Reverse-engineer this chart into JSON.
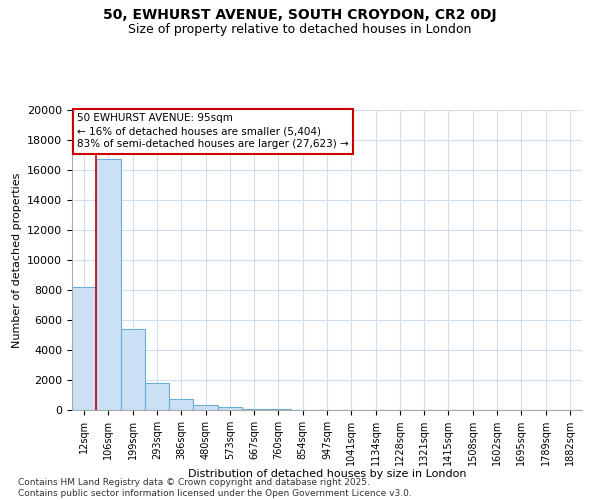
{
  "title1": "50, EWHURST AVENUE, SOUTH CROYDON, CR2 0DJ",
  "title2": "Size of property relative to detached houses in London",
  "xlabel": "Distribution of detached houses by size in London",
  "ylabel": "Number of detached properties",
  "bar_categories": [
    "12sqm",
    "106sqm",
    "199sqm",
    "293sqm",
    "386sqm",
    "480sqm",
    "573sqm",
    "667sqm",
    "760sqm",
    "854sqm",
    "947sqm",
    "1041sqm",
    "1134sqm",
    "1228sqm",
    "1321sqm",
    "1415sqm",
    "1508sqm",
    "1602sqm",
    "1695sqm",
    "1789sqm",
    "1882sqm"
  ],
  "bar_values": [
    8200,
    16700,
    5400,
    1800,
    750,
    320,
    200,
    100,
    50,
    0,
    0,
    0,
    0,
    0,
    0,
    0,
    0,
    0,
    0,
    0,
    0
  ],
  "bar_color": "#cce0f5",
  "bar_edge_color": "#6aaed6",
  "annotation_box_text": "50 EWHURST AVENUE: 95sqm\n← 16% of detached houses are smaller (5,404)\n83% of semi-detached houses are larger (27,623) →",
  "vline_x": 0.5,
  "vline_color": "#cc0000",
  "ylim": [
    0,
    20000
  ],
  "yticks": [
    0,
    2000,
    4000,
    6000,
    8000,
    10000,
    12000,
    14000,
    16000,
    18000,
    20000
  ],
  "footer_text": "Contains HM Land Registry data © Crown copyright and database right 2025.\nContains public sector information licensed under the Open Government Licence v3.0.",
  "background_color": "#ffffff",
  "grid_color": "#d0dff0"
}
